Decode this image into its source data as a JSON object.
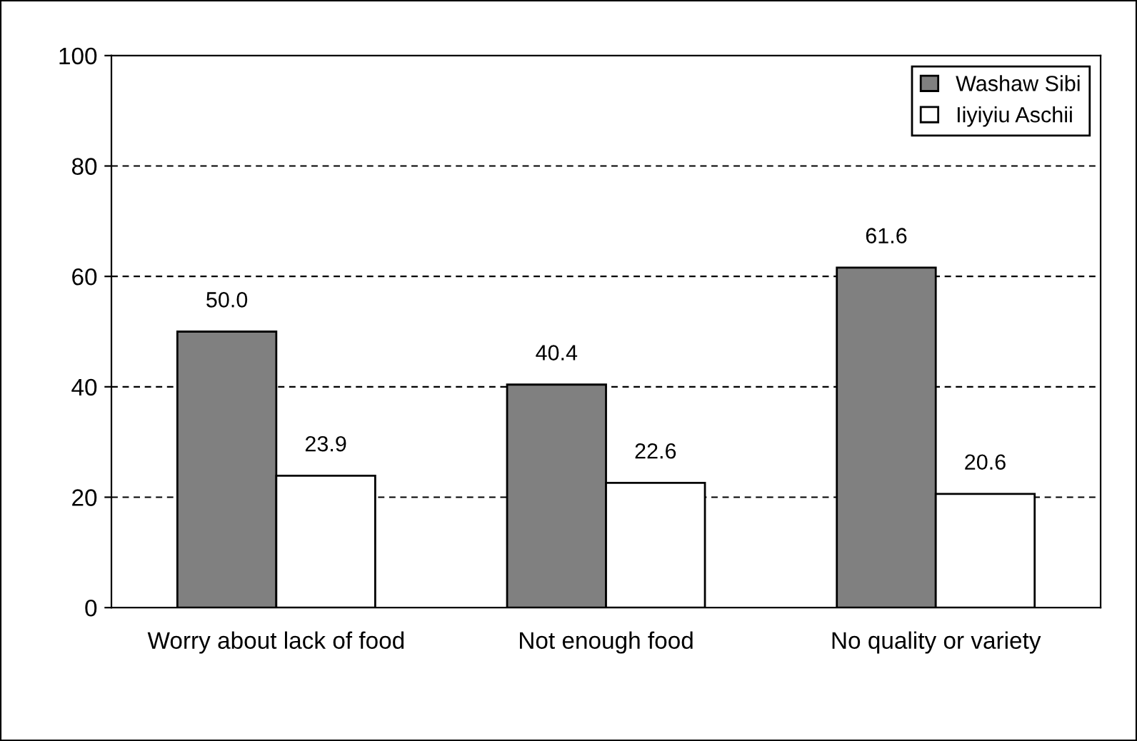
{
  "chart_data": {
    "type": "bar",
    "categories": [
      "Worry about lack of food",
      "Not enough food",
      "No quality or variety"
    ],
    "series": [
      {
        "name": "Washaw Sibi",
        "color": "#808080",
        "values": [
          50.0,
          40.4,
          61.6
        ],
        "value_labels": [
          "50.0",
          "40.4",
          "61.6"
        ]
      },
      {
        "name": "Iiyiyiu Aschii",
        "color": "#ffffff",
        "values": [
          23.9,
          22.6,
          20.6
        ],
        "value_labels": [
          "23.9",
          "22.6",
          "20.6"
        ]
      }
    ],
    "ylim": [
      0,
      100
    ],
    "yticks": [
      0,
      20,
      40,
      60,
      80,
      100
    ],
    "grid": "y",
    "legend": "top right"
  }
}
